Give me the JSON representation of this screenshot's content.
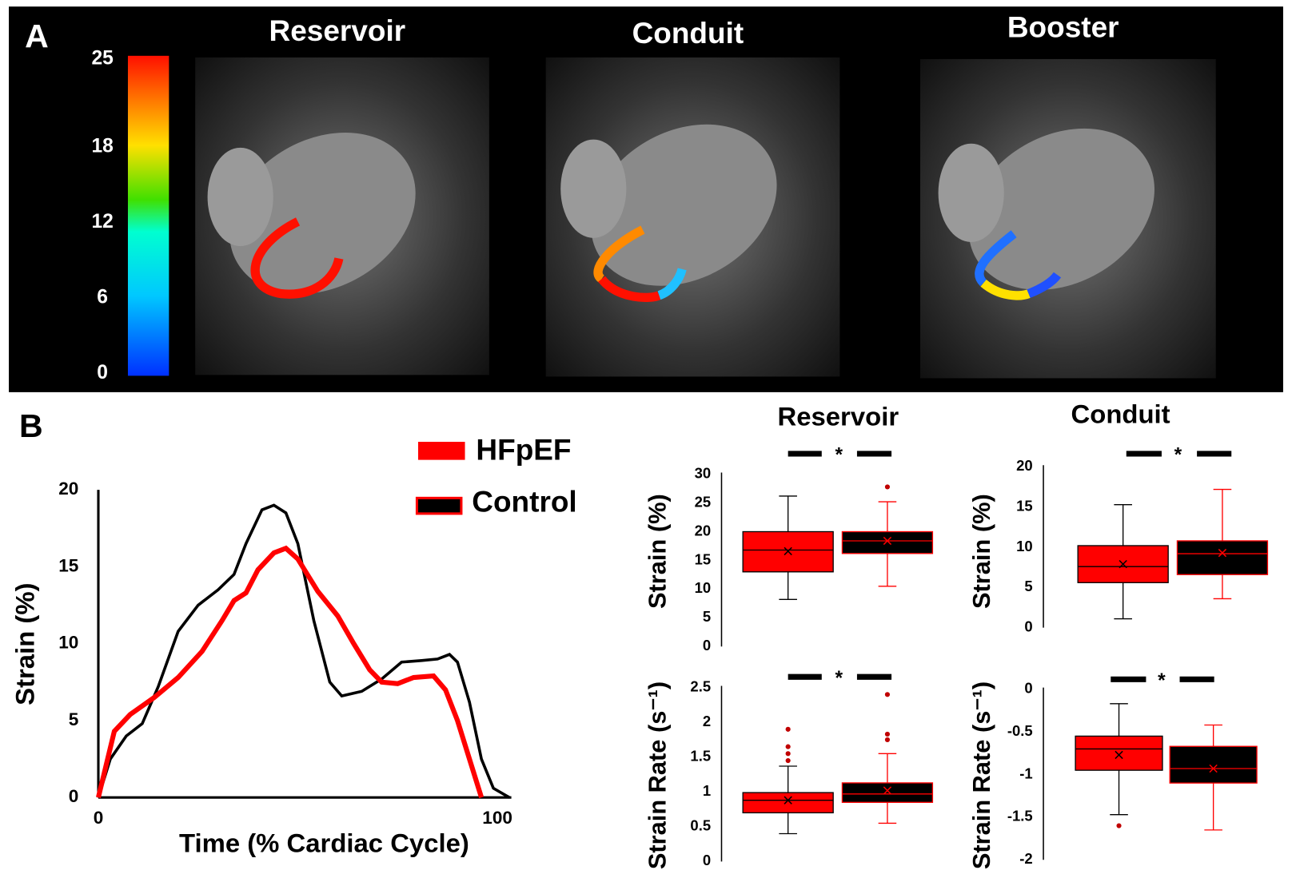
{
  "panel_labels": [
    "A",
    "B"
  ],
  "images": {
    "titles": [
      "Reservoir",
      "Conduit",
      "Booster"
    ]
  },
  "colorbar": {
    "lim": [
      0,
      25
    ],
    "ticks": [
      0,
      6,
      12,
      18,
      25
    ]
  },
  "chart_data": [
    {
      "type": "line",
      "xlabel": "Time (% Cardiac Cycle)",
      "ylabel": "Strain (%)",
      "xlim": [
        0,
        100
      ],
      "xticks": [
        0,
        100
      ],
      "ylim": [
        0,
        20
      ],
      "yticks": [
        0,
        5,
        10,
        15,
        20
      ],
      "series": [
        {
          "name": "HFpEF",
          "color": "#ff0000",
          "x": [
            0,
            4,
            8,
            14,
            20,
            26,
            31,
            34,
            37,
            40,
            44,
            47,
            50,
            55,
            60,
            64,
            68,
            71,
            75,
            79,
            84,
            87,
            90,
            93,
            96
          ],
          "values": [
            0,
            4.3,
            5.4,
            6.5,
            7.8,
            9.5,
            11.5,
            12.8,
            13.3,
            14.8,
            15.9,
            16.2,
            15.5,
            13.4,
            11.8,
            10,
            8.3,
            7.5,
            7.4,
            7.8,
            7.9,
            7,
            5,
            2.5,
            0
          ]
        },
        {
          "name": "Control",
          "color": "#000000",
          "edge": "#ff0000",
          "x": [
            0,
            3,
            7,
            11,
            15,
            20,
            25,
            30,
            34,
            37,
            41,
            44,
            47,
            50,
            54,
            58,
            61,
            66,
            71,
            76,
            81,
            85,
            88,
            90,
            93,
            96,
            99,
            103
          ],
          "values": [
            0,
            2.5,
            4,
            4.8,
            7.2,
            10.8,
            12.5,
            13.5,
            14.5,
            16.5,
            18.7,
            19,
            18.5,
            16.5,
            11.5,
            7.5,
            6.6,
            6.9,
            7.7,
            8.8,
            8.9,
            9,
            9.3,
            8.8,
            6.2,
            2.5,
            0.6,
            0
          ]
        }
      ]
    },
    {
      "type": "box",
      "title": "Reservoir",
      "ylabel": "Strain (%)",
      "significance": "*",
      "ylim": [
        0,
        30
      ],
      "yticks": [
        0,
        5,
        10,
        15,
        20,
        25,
        30
      ],
      "boxes": [
        {
          "color": "#ff0000",
          "line": "#000000",
          "low": 8.2,
          "q1": 13,
          "median": 16.8,
          "q3": 20,
          "high": 26.2,
          "mean": 16.6,
          "outliers": []
        },
        {
          "color": "#000000",
          "line": "#ff0000",
          "low": 10.5,
          "q1": 16.2,
          "median": 18.4,
          "q3": 20,
          "high": 25.2,
          "mean": 18.4,
          "outliers": [
            27.8
          ]
        }
      ]
    },
    {
      "type": "box",
      "title": "Conduit",
      "ylabel": "Strain (%)",
      "significance": "*",
      "ylim": [
        0,
        20
      ],
      "yticks": [
        0,
        5,
        10,
        15,
        20
      ],
      "boxes": [
        {
          "color": "#ff0000",
          "line": "#000000",
          "low": 1.1,
          "q1": 5.6,
          "median": 7.6,
          "q3": 10.2,
          "high": 15.3,
          "mean": 7.9,
          "outliers": []
        },
        {
          "color": "#000000",
          "line": "#ff0000",
          "low": 3.6,
          "q1": 6.6,
          "median": 9.2,
          "q3": 10.8,
          "high": 17.2,
          "mean": 9.3,
          "outliers": []
        }
      ]
    },
    {
      "type": "box",
      "ylabel": "Strain Rate (s⁻¹)",
      "significance": "*",
      "ylim": [
        0,
        2.5
      ],
      "yticks": [
        0,
        0.5,
        1,
        1.5,
        2,
        2.5
      ],
      "boxes": [
        {
          "color": "#ff0000",
          "line": "#000000",
          "low": 0.4,
          "q1": 0.7,
          "median": 0.88,
          "q3": 0.99,
          "high": 1.37,
          "mean": 0.88,
          "outliers": [
            1.45,
            1.55,
            1.65,
            1.9
          ]
        },
        {
          "color": "#000000",
          "line": "#ff0000",
          "low": 0.55,
          "q1": 0.85,
          "median": 0.97,
          "q3": 1.13,
          "high": 1.55,
          "mean": 1.02,
          "outliers": [
            1.75,
            1.83,
            2.4
          ]
        }
      ]
    },
    {
      "type": "box",
      "ylabel": "Strain Rate (s⁻¹)",
      "significance": "*",
      "ylim": [
        -2,
        0
      ],
      "yticks": [
        0,
        -0.5,
        -1,
        -1.5,
        -2
      ],
      "boxes": [
        {
          "color": "#ff0000",
          "line": "#000000",
          "low": -1.47,
          "q1": -0.95,
          "median": -0.7,
          "q3": -0.55,
          "high": -0.17,
          "mean": -0.77,
          "outliers": [
            -1.6
          ]
        },
        {
          "color": "#000000",
          "line": "#ff0000",
          "low": -1.65,
          "q1": -1.1,
          "median": -0.93,
          "q3": -0.67,
          "high": -0.42,
          "mean": -0.93,
          "outliers": []
        }
      ]
    }
  ]
}
